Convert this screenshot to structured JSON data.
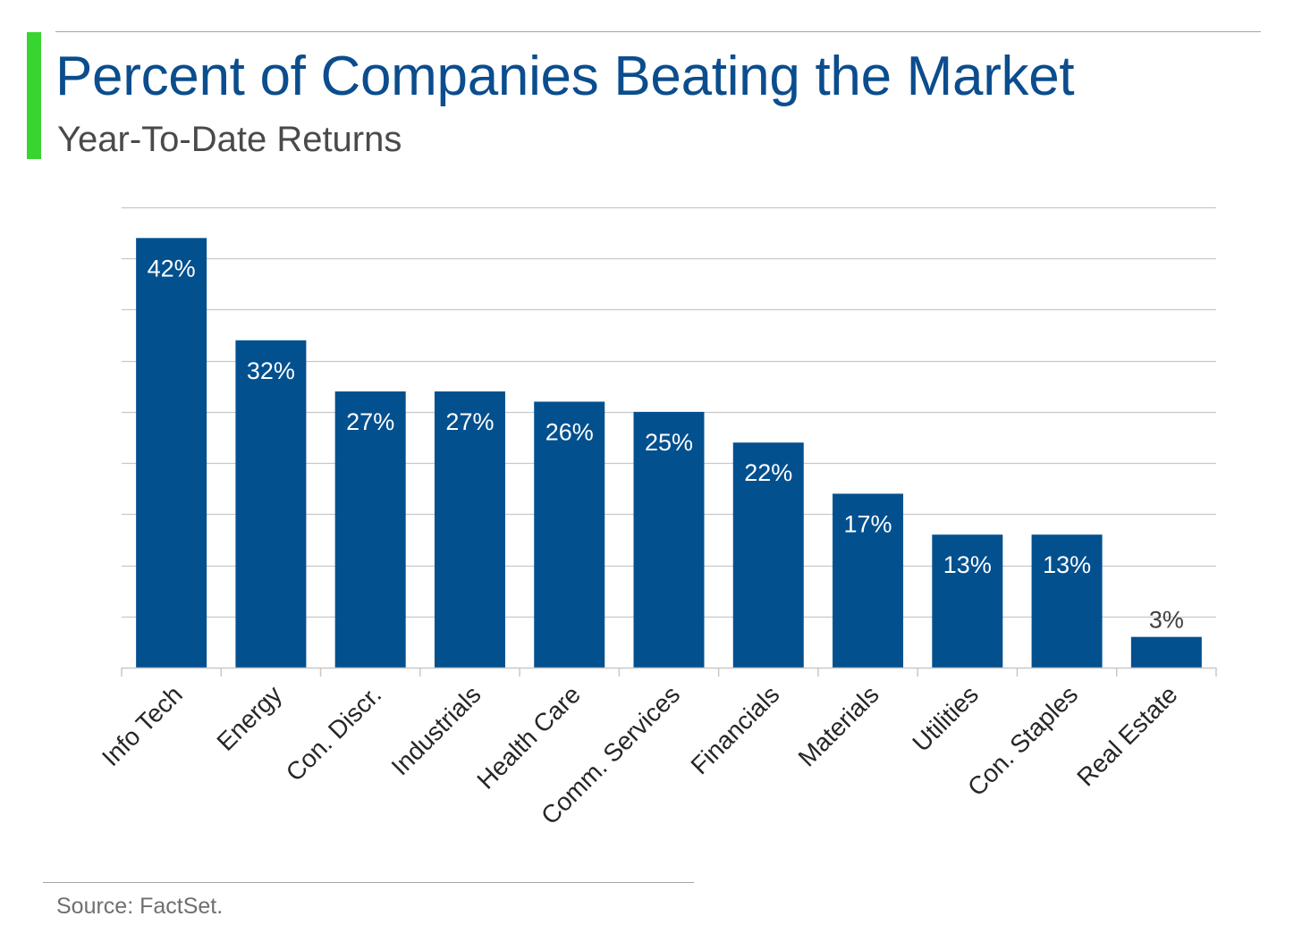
{
  "header": {
    "title": "Percent of Companies Beating the Market",
    "subtitle": "Year-To-Date Returns"
  },
  "footer": {
    "source": "Source: FactSet."
  },
  "colors": {
    "accent": "#38d430",
    "title": "#0b4d8d",
    "subtitle": "#4a4a4a",
    "bar": "#03508f",
    "label_inside": "#ffffff",
    "label_outside": "#404040",
    "grid": "#c8c8c8",
    "axis_text": "#262626",
    "source": "#6f6f6f"
  },
  "chart_data": {
    "type": "bar",
    "categories": [
      "Info Tech",
      "Energy",
      "Con. Discr.",
      "Industrials",
      "Health Care",
      "Comm. Services",
      "Financials",
      "Materials",
      "Utilities",
      "Con. Staples",
      "Real Estate"
    ],
    "values": [
      42,
      32,
      27,
      27,
      26,
      25,
      22,
      17,
      13,
      13,
      3
    ],
    "data_labels": [
      "42%",
      "32%",
      "27%",
      "27%",
      "26%",
      "25%",
      "22%",
      "17%",
      "13%",
      "13%",
      "3%"
    ],
    "ylim": [
      0,
      45
    ],
    "grid": true,
    "legend": "none"
  }
}
